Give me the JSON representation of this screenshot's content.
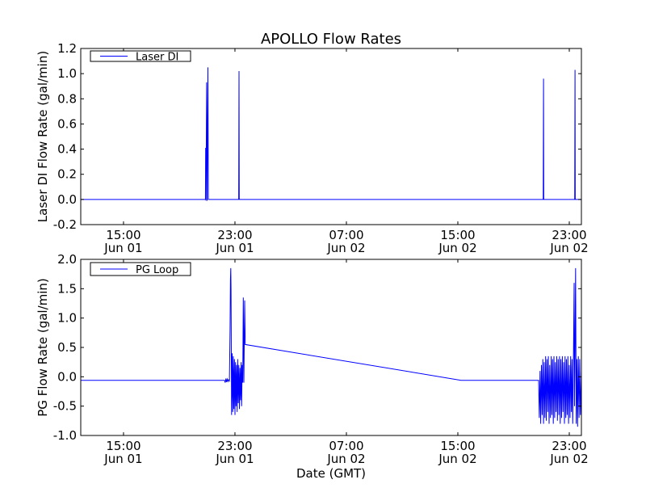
{
  "chart_data": [
    {
      "type": "line",
      "title": "APOLLO Flow Rates",
      "xlabel": "",
      "ylabel": "Laser DI Flow Rate (gal/min)",
      "x_unit": "hours since Jun 01 00:00 GMT",
      "xlim": [
        11.93,
        47.87
      ],
      "ylim": [
        -0.2,
        1.2
      ],
      "yticks": [
        -0.2,
        0.0,
        0.2,
        0.4,
        0.6,
        0.8,
        1.0,
        1.2
      ],
      "ytick_labels": [
        "-0.2",
        "0.0",
        "0.2",
        "0.4",
        "0.6",
        "0.8",
        "1.0",
        "1.2"
      ],
      "xticks": [
        15,
        23,
        31,
        39,
        47
      ],
      "xtick_labels": [
        [
          "15:00",
          "Jun 01"
        ],
        [
          "23:00",
          "Jun 01"
        ],
        [
          "07:00",
          "Jun 02"
        ],
        [
          "15:00",
          "Jun 02"
        ],
        [
          "23:00",
          "Jun 02"
        ]
      ],
      "legend": {
        "position": "top-left",
        "entries": [
          "Laser DI"
        ]
      },
      "series": [
        {
          "name": "Laser DI",
          "color": "#0000ff",
          "points": [
            [
              11.93,
              0
            ],
            [
              20.88,
              0
            ],
            [
              20.9,
              0.41
            ],
            [
              20.92,
              -0.01
            ],
            [
              20.97,
              0.93
            ],
            [
              21.0,
              -0.01
            ],
            [
              21.06,
              1.05
            ],
            [
              21.09,
              0
            ],
            [
              23.27,
              0
            ],
            [
              23.29,
              1.02
            ],
            [
              23.31,
              0
            ],
            [
              45.13,
              0
            ],
            [
              45.15,
              0.96
            ],
            [
              45.17,
              0
            ],
            [
              47.39,
              0
            ],
            [
              47.41,
              1.03
            ],
            [
              47.43,
              0
            ],
            [
              47.87,
              0
            ]
          ]
        }
      ]
    },
    {
      "type": "line",
      "title": "",
      "xlabel": "Date (GMT)",
      "ylabel": "PG Flow Rate (gal/min)",
      "x_unit": "hours since Jun 01 00:00 GMT",
      "xlim": [
        11.93,
        47.87
      ],
      "ylim": [
        -1.0,
        2.0
      ],
      "yticks": [
        -1.0,
        -0.5,
        0.0,
        0.5,
        1.0,
        1.5,
        2.0
      ],
      "ytick_labels": [
        "-1.0",
        "-0.5",
        "0.0",
        "0.5",
        "1.0",
        "1.5",
        "2.0"
      ],
      "xticks": [
        15,
        23,
        31,
        39,
        47
      ],
      "xtick_labels": [
        [
          "15:00",
          "Jun 01"
        ],
        [
          "23:00",
          "Jun 01"
        ],
        [
          "07:00",
          "Jun 02"
        ],
        [
          "15:00",
          "Jun 02"
        ],
        [
          "23:00",
          "Jun 02"
        ]
      ],
      "legend": {
        "position": "top-left",
        "entries": [
          "PG Loop"
        ]
      },
      "series": [
        {
          "name": "PG Loop",
          "color": "#0000ff",
          "points": [
            [
              11.93,
              -0.06
            ],
            [
              22.25,
              -0.06
            ],
            [
              22.3,
              -0.1
            ],
            [
              22.35,
              -0.03
            ],
            [
              22.4,
              -0.09
            ],
            [
              22.45,
              -0.04
            ],
            [
              22.5,
              -0.08
            ],
            [
              22.55,
              -0.05
            ],
            [
              22.6,
              -0.07
            ],
            [
              22.65,
              0.8
            ],
            [
              22.68,
              1.65
            ],
            [
              22.7,
              1.85
            ],
            [
              22.72,
              1.5
            ],
            [
              22.76,
              -0.65
            ],
            [
              22.8,
              0.4
            ],
            [
              22.84,
              -0.6
            ],
            [
              22.88,
              0.35
            ],
            [
              22.92,
              -0.55
            ],
            [
              22.96,
              0.3
            ],
            [
              23.0,
              -0.65
            ],
            [
              23.04,
              0.25
            ],
            [
              23.08,
              -0.5
            ],
            [
              23.12,
              0.2
            ],
            [
              23.16,
              -0.6
            ],
            [
              23.2,
              0.3
            ],
            [
              23.24,
              -0.45
            ],
            [
              23.28,
              0.2
            ],
            [
              23.32,
              -0.55
            ],
            [
              23.36,
              0.15
            ],
            [
              23.4,
              -0.4
            ],
            [
              23.44,
              0.25
            ],
            [
              23.48,
              -0.5
            ],
            [
              23.52,
              0.2
            ],
            [
              23.56,
              -0.1
            ],
            [
              23.6,
              1.35
            ],
            [
              23.64,
              -0.1
            ],
            [
              23.7,
              1.3
            ],
            [
              23.74,
              0.55
            ],
            [
              39.23,
              -0.06
            ],
            [
              44.8,
              -0.06
            ],
            [
              44.85,
              -0.7
            ],
            [
              44.9,
              0.1
            ],
            [
              44.95,
              -0.8
            ],
            [
              45.0,
              0.2
            ],
            [
              45.05,
              -0.65
            ],
            [
              45.1,
              0.3
            ],
            [
              45.15,
              -0.8
            ],
            [
              45.2,
              0.25
            ],
            [
              45.25,
              -0.7
            ],
            [
              45.3,
              0.35
            ],
            [
              45.35,
              -0.75
            ],
            [
              45.4,
              0.3
            ],
            [
              45.45,
              -0.6
            ],
            [
              45.5,
              0.35
            ],
            [
              45.55,
              -0.8
            ],
            [
              45.6,
              0.2
            ],
            [
              45.65,
              -0.7
            ],
            [
              45.7,
              0.35
            ],
            [
              45.75,
              -0.65
            ],
            [
              45.8,
              0.3
            ],
            [
              45.85,
              -0.8
            ],
            [
              45.9,
              0.35
            ],
            [
              45.95,
              -0.7
            ],
            [
              46.0,
              0.25
            ],
            [
              46.05,
              -0.6
            ],
            [
              46.1,
              0.35
            ],
            [
              46.15,
              -0.75
            ],
            [
              46.2,
              0.3
            ],
            [
              46.25,
              -0.65
            ],
            [
              46.3,
              0.35
            ],
            [
              46.35,
              -0.8
            ],
            [
              46.4,
              0.3
            ],
            [
              46.45,
              -0.7
            ],
            [
              46.5,
              0.35
            ],
            [
              46.55,
              -0.6
            ],
            [
              46.6,
              0.25
            ],
            [
              46.65,
              -0.8
            ],
            [
              46.7,
              0.35
            ],
            [
              46.75,
              -0.7
            ],
            [
              46.8,
              0.3
            ],
            [
              46.85,
              -0.65
            ],
            [
              46.9,
              0.35
            ],
            [
              46.95,
              -0.8
            ],
            [
              47.0,
              0.2
            ],
            [
              47.05,
              -0.7
            ],
            [
              47.1,
              0.35
            ],
            [
              47.15,
              -0.6
            ],
            [
              47.2,
              0.3
            ],
            [
              47.25,
              -0.8
            ],
            [
              47.3,
              0.4
            ],
            [
              47.35,
              1.6
            ],
            [
              47.38,
              -0.5
            ],
            [
              47.42,
              0.6
            ],
            [
              47.45,
              1.85
            ],
            [
              47.5,
              -0.8
            ],
            [
              47.55,
              0.3
            ],
            [
              47.6,
              -0.85
            ],
            [
              47.65,
              0.35
            ],
            [
              47.7,
              -0.7
            ],
            [
              47.75,
              0.3
            ],
            [
              47.8,
              -0.65
            ],
            [
              47.87,
              0.1
            ]
          ]
        }
      ]
    }
  ]
}
